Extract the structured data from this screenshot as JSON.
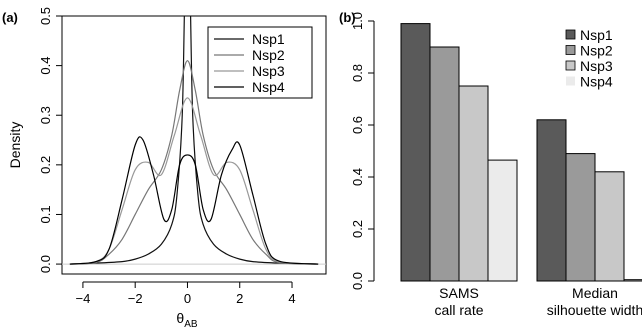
{
  "chart_data": [
    {
      "panel_label": "(a)",
      "type": "line",
      "xlabel": "θAB",
      "xlabel_main": "θ",
      "xlabel_sub": "AB",
      "ylabel": "Density",
      "xlim": [
        -4.8,
        5.3
      ],
      "ylim": [
        -0.02,
        0.5
      ],
      "x_ticks": [
        -4,
        -2,
        0,
        2,
        4
      ],
      "x_tick_labels": [
        "−4",
        "−2",
        "0",
        "2",
        "4"
      ],
      "y_ticks": [
        0.0,
        0.1,
        0.2,
        0.3,
        0.4,
        0.5
      ],
      "y_tick_labels": [
        "0.0",
        "0.1",
        "0.2",
        "0.3",
        "0.4",
        "0.5"
      ],
      "legend": {
        "position": "top-right",
        "entries": [
          "Nsp1",
          "Nsp2",
          "Nsp3",
          "Nsp4"
        ]
      },
      "series": [
        {
          "name": "Nsp1",
          "color": "#111111",
          "x": [
            -4.5,
            -3.5,
            -2.5,
            -2.0,
            -1.5,
            -1.0,
            -0.6,
            -0.4,
            -0.2,
            -0.1,
            0.0,
            0.1,
            0.2,
            0.4,
            0.6,
            1.0,
            1.5,
            2.0,
            2.5,
            3.5,
            5.0
          ],
          "y": [
            0.0,
            0.002,
            0.005,
            0.01,
            0.02,
            0.04,
            0.08,
            0.14,
            0.3,
            0.55,
            0.7,
            0.55,
            0.3,
            0.14,
            0.08,
            0.04,
            0.02,
            0.01,
            0.005,
            0.002,
            0.0
          ]
        },
        {
          "name": "Nsp2",
          "color": "#777777",
          "x": [
            -4.5,
            -3.5,
            -3.0,
            -2.5,
            -2.0,
            -1.5,
            -1.0,
            -0.6,
            -0.3,
            0.0,
            0.3,
            0.6,
            1.0,
            1.5,
            2.0,
            2.5,
            3.0,
            3.5,
            5.0
          ],
          "y": [
            0.0,
            0.003,
            0.02,
            0.05,
            0.1,
            0.15,
            0.19,
            0.26,
            0.35,
            0.41,
            0.35,
            0.26,
            0.19,
            0.15,
            0.1,
            0.05,
            0.02,
            0.003,
            0.0
          ]
        },
        {
          "name": "Nsp3",
          "color": "#999999",
          "x": [
            -4.5,
            -3.5,
            -3.0,
            -2.5,
            -2.0,
            -1.5,
            -1.0,
            -0.5,
            0.0,
            0.5,
            1.0,
            1.5,
            2.0,
            2.5,
            3.0,
            3.5,
            5.0
          ],
          "y": [
            0.0,
            0.005,
            0.03,
            0.11,
            0.19,
            0.205,
            0.18,
            0.26,
            0.335,
            0.26,
            0.18,
            0.205,
            0.19,
            0.11,
            0.03,
            0.005,
            0.0
          ]
        },
        {
          "name": "Nsp4",
          "color": "#000000",
          "x": [
            -4.5,
            -3.5,
            -3.0,
            -2.5,
            -2.0,
            -1.7,
            -1.3,
            -0.9,
            -0.6,
            -0.3,
            0.0,
            0.3,
            0.6,
            0.9,
            1.3,
            1.7,
            2.0,
            2.5,
            3.0,
            3.5,
            5.0
          ],
          "y": [
            0.0,
            0.005,
            0.03,
            0.13,
            0.24,
            0.25,
            0.18,
            0.09,
            0.11,
            0.2,
            0.22,
            0.2,
            0.11,
            0.09,
            0.18,
            0.23,
            0.24,
            0.14,
            0.04,
            0.006,
            0.0
          ]
        }
      ]
    },
    {
      "panel_label": "(b)",
      "type": "bar",
      "categories": [
        "SAMS\ncall rate",
        "Median\nsilhouette width"
      ],
      "category_lines": [
        [
          "SAMS",
          "call rate"
        ],
        [
          "Median",
          "silhouette width"
        ]
      ],
      "ylim": [
        0,
        1.0
      ],
      "y_ticks": [
        0.0,
        0.2,
        0.4,
        0.6,
        0.8,
        1.0
      ],
      "y_tick_labels": [
        "0.0",
        "0.2",
        "0.4",
        "0.6",
        "0.8",
        "1.0"
      ],
      "legend": {
        "position": "top-right",
        "entries": [
          "Nsp1",
          "Nsp2",
          "Nsp3",
          "Nsp4"
        ]
      },
      "series": [
        {
          "name": "Nsp1",
          "color": "#5a5a5a",
          "values": [
            0.99,
            0.62
          ]
        },
        {
          "name": "Nsp2",
          "color": "#9a9a9a",
          "values": [
            0.9,
            0.49
          ]
        },
        {
          "name": "Nsp3",
          "color": "#c8c8c8",
          "values": [
            0.75,
            0.42
          ]
        },
        {
          "name": "Nsp4",
          "color": "#ebebeb",
          "values": [
            0.465,
            0.005
          ]
        }
      ]
    }
  ]
}
